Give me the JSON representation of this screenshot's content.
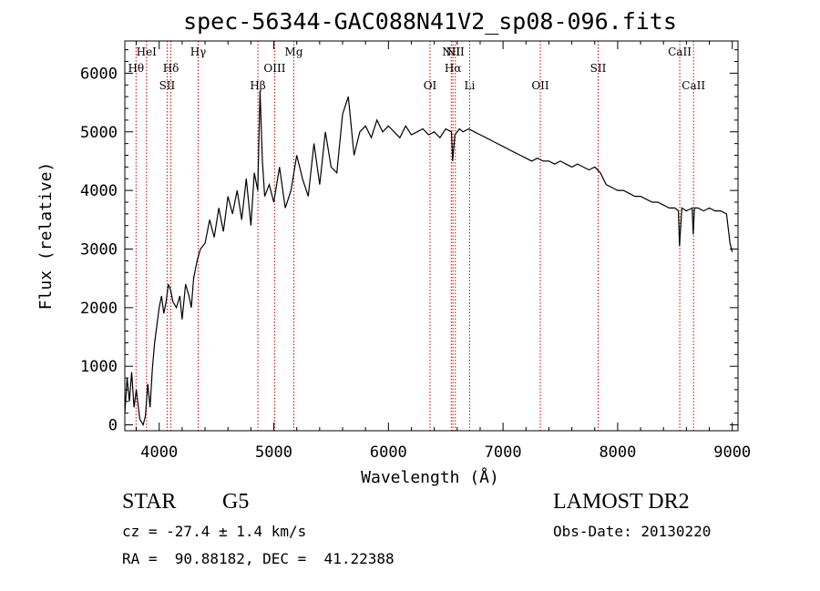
{
  "chart_data": {
    "type": "line",
    "title": "spec-56344-GAC088N41V2_sp08-096.fits",
    "xlabel": "Wavelength (Å)",
    "ylabel": "Flux (relative)",
    "xlim": [
      3700,
      9050
    ],
    "ylim": [
      -100,
      6550
    ],
    "xticks": [
      "4000",
      "5000",
      "6000",
      "7000",
      "8000",
      "9000"
    ],
    "yticks": [
      "0",
      "1000",
      "2000",
      "3000",
      "4000",
      "5000",
      "6000"
    ],
    "series": [
      {
        "x": [
          3700,
          3720,
          3740,
          3760,
          3780,
          3800,
          3830,
          3860,
          3880,
          3900,
          3920,
          3940,
          3960,
          3980,
          4000,
          4020,
          4040,
          4060,
          4080,
          4100,
          4120,
          4150,
          4180,
          4200,
          4230,
          4260,
          4280,
          4300,
          4330,
          4360,
          4400,
          4440,
          4480,
          4520,
          4560,
          4600,
          4640,
          4680,
          4720,
          4760,
          4800,
          4830,
          4860,
          4880,
          4900,
          4920,
          4960,
          5000,
          5050,
          5100,
          5150,
          5200,
          5250,
          5300,
          5350,
          5400,
          5450,
          5500,
          5550,
          5600,
          5650,
          5700,
          5750,
          5800,
          5850,
          5900,
          5950,
          6000,
          6050,
          6100,
          6150,
          6200,
          6250,
          6300,
          6350,
          6400,
          6450,
          6500,
          6550,
          6560,
          6580,
          6600,
          6620,
          6650,
          6700,
          6750,
          6800,
          6850,
          6900,
          6950,
          7000,
          7050,
          7100,
          7150,
          7200,
          7250,
          7300,
          7350,
          7400,
          7450,
          7500,
          7550,
          7600,
          7650,
          7700,
          7750,
          7800,
          7850,
          7900,
          7950,
          8000,
          8050,
          8100,
          8150,
          8200,
          8250,
          8300,
          8350,
          8400,
          8450,
          8500,
          8530,
          8540,
          8560,
          8600,
          8650,
          8660,
          8670,
          8700,
          8750,
          8800,
          8850,
          8900,
          8950,
          8980,
          9000
        ],
        "y": [
          200,
          800,
          400,
          900,
          300,
          600,
          100,
          0,
          150,
          700,
          300,
          950,
          1400,
          1700,
          2000,
          2200,
          1900,
          2100,
          2400,
          2300,
          2100,
          2000,
          2200,
          1800,
          2400,
          2200,
          2000,
          2500,
          2800,
          3000,
          3100,
          3500,
          3200,
          3700,
          3300,
          3900,
          3600,
          4000,
          3500,
          4200,
          3400,
          4300,
          4000,
          5700,
          4500,
          3900,
          4100,
          3800,
          4400,
          3700,
          4000,
          4600,
          4200,
          3900,
          4800,
          4100,
          5000,
          4400,
          4300,
          5300,
          5600,
          4600,
          5000,
          5100,
          4900,
          5200,
          5000,
          5100,
          5000,
          4900,
          5100,
          4950,
          5000,
          5050,
          4950,
          5000,
          4900,
          5050,
          5000,
          4500,
          4950,
          5000,
          5050,
          5000,
          5050,
          5000,
          4950,
          4900,
          4850,
          4800,
          4750,
          4700,
          4650,
          4600,
          4550,
          4500,
          4550,
          4500,
          4500,
          4450,
          4500,
          4450,
          4400,
          4450,
          4400,
          4350,
          4400,
          4300,
          4100,
          4050,
          4000,
          4000,
          3950,
          3900,
          3900,
          3850,
          3800,
          3800,
          3750,
          3700,
          3700,
          3650,
          3050,
          3700,
          3650,
          3700,
          3250,
          3700,
          3700,
          3650,
          3700,
          3650,
          3650,
          3600,
          3100,
          2950
        ]
      }
    ],
    "spectral_lines": [
      {
        "label": "Hθ",
        "x": 3798,
        "row": 2
      },
      {
        "label": "HeI",
        "x": 3889,
        "row": 1
      },
      {
        "label": "SII",
        "x": 4069,
        "row": 3
      },
      {
        "label": "Hδ",
        "x": 4102,
        "row": 2
      },
      {
        "label": "Hγ",
        "x": 4340,
        "row": 1
      },
      {
        "label": "Hβ",
        "x": 4861,
        "row": 3
      },
      {
        "label": "OIII",
        "x": 5007,
        "row": 2
      },
      {
        "label": "Mg",
        "x": 5175,
        "row": 1
      },
      {
        "label": "OI",
        "x": 6363,
        "row": 3
      },
      {
        "label": "NII",
        "x": 6548,
        "row": 1
      },
      {
        "label": "Hα",
        "x": 6563,
        "row": 2
      },
      {
        "label": "NII",
        "x": 6584,
        "row": 0
      },
      {
        "label": "Li",
        "x": 6708,
        "row": 3
      },
      {
        "label": "OII",
        "x": 7325,
        "row": 3
      },
      {
        "label": "SII",
        "x": 7830,
        "row": 2
      },
      {
        "label": "CaII",
        "x": 8542,
        "row": 1
      },
      {
        "label": "CaII",
        "x": 8662,
        "row": 3
      }
    ],
    "colors": {
      "line": "#000000",
      "marker_lines": "#cc0000",
      "axes": "#000000"
    },
    "grid": false
  },
  "info": {
    "object_type": "STAR",
    "subclass": "G5",
    "survey": "LAMOST DR2",
    "redshift": "cz = -27.4 ± 1.4 km/s",
    "obs_date": "Obs-Date: 20130220",
    "coords": "RA =  90.88182, DEC =  41.22388"
  }
}
